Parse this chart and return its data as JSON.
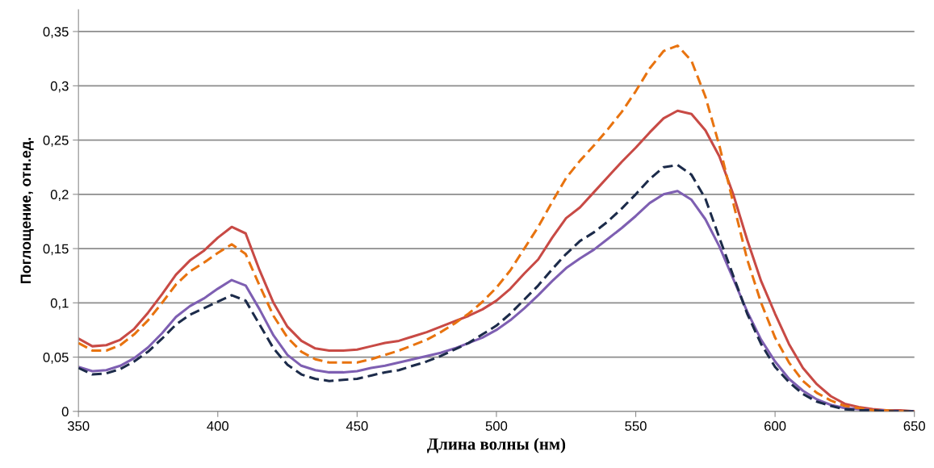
{
  "chart_data": {
    "type": "line",
    "xlabel": "Длина волны (нм)",
    "ylabel": "Поглощение, отн.ед.",
    "x": [
      350,
      355,
      360,
      365,
      370,
      375,
      380,
      385,
      390,
      395,
      400,
      405,
      410,
      415,
      420,
      425,
      430,
      435,
      440,
      445,
      450,
      455,
      460,
      465,
      470,
      475,
      480,
      485,
      490,
      495,
      500,
      505,
      510,
      515,
      520,
      525,
      530,
      535,
      540,
      545,
      550,
      555,
      560,
      565,
      570,
      575,
      580,
      585,
      590,
      595,
      600,
      605,
      610,
      615,
      620,
      625,
      630,
      635,
      640,
      645,
      650
    ],
    "xlim": [
      350,
      650
    ],
    "xticks": [
      350,
      400,
      450,
      500,
      550,
      600,
      650
    ],
    "ylim": [
      0,
      0.37
    ],
    "yticks": [
      {
        "value": 0,
        "label": "0"
      },
      {
        "value": 0.05,
        "label": "0,05"
      },
      {
        "value": 0.1,
        "label": "0,1"
      },
      {
        "value": 0.15,
        "label": "0,15"
      },
      {
        "value": 0.2,
        "label": "0,2"
      },
      {
        "value": 0.25,
        "label": "0,25"
      },
      {
        "value": 0.3,
        "label": "0,3"
      },
      {
        "value": 0.35,
        "label": "0,35"
      }
    ],
    "grid": "y",
    "legend": false,
    "marker": "none",
    "series": [
      {
        "color": "#c84a45",
        "line_style": "solid",
        "values": [
          0.067,
          0.06,
          0.061,
          0.066,
          0.076,
          0.091,
          0.108,
          0.126,
          0.139,
          0.148,
          0.16,
          0.17,
          0.164,
          0.13,
          0.1,
          0.078,
          0.065,
          0.058,
          0.056,
          0.056,
          0.057,
          0.06,
          0.063,
          0.065,
          0.069,
          0.073,
          0.078,
          0.083,
          0.088,
          0.094,
          0.102,
          0.113,
          0.127,
          0.14,
          0.16,
          0.178,
          0.188,
          0.202,
          0.216,
          0.23,
          0.243,
          0.257,
          0.27,
          0.277,
          0.274,
          0.259,
          0.235,
          0.2,
          0.158,
          0.12,
          0.09,
          0.062,
          0.04,
          0.025,
          0.014,
          0.007,
          0.004,
          0.002,
          0.001,
          0.001,
          0.0
        ]
      },
      {
        "color": "#e8730f",
        "line_style": "dashed",
        "values": [
          0.063,
          0.056,
          0.056,
          0.061,
          0.071,
          0.084,
          0.1,
          0.117,
          0.129,
          0.137,
          0.146,
          0.154,
          0.145,
          0.116,
          0.088,
          0.068,
          0.055,
          0.048,
          0.045,
          0.045,
          0.045,
          0.048,
          0.052,
          0.056,
          0.061,
          0.066,
          0.073,
          0.081,
          0.09,
          0.101,
          0.114,
          0.13,
          0.15,
          0.17,
          0.193,
          0.215,
          0.231,
          0.245,
          0.26,
          0.276,
          0.295,
          0.316,
          0.332,
          0.337,
          0.323,
          0.29,
          0.245,
          0.192,
          0.14,
          0.1,
          0.068,
          0.045,
          0.028,
          0.017,
          0.01,
          0.005,
          0.003,
          0.001,
          0.001,
          0.0,
          0.0
        ]
      },
      {
        "color": "#7e5fb2",
        "line_style": "solid",
        "values": [
          0.041,
          0.037,
          0.038,
          0.042,
          0.049,
          0.059,
          0.072,
          0.087,
          0.097,
          0.104,
          0.113,
          0.121,
          0.116,
          0.094,
          0.07,
          0.052,
          0.042,
          0.038,
          0.036,
          0.036,
          0.037,
          0.04,
          0.042,
          0.045,
          0.048,
          0.051,
          0.054,
          0.058,
          0.063,
          0.068,
          0.075,
          0.084,
          0.095,
          0.107,
          0.12,
          0.132,
          0.141,
          0.149,
          0.159,
          0.169,
          0.18,
          0.192,
          0.2,
          0.203,
          0.195,
          0.177,
          0.152,
          0.122,
          0.092,
          0.066,
          0.046,
          0.03,
          0.019,
          0.011,
          0.006,
          0.003,
          0.002,
          0.001,
          0.001,
          0.0,
          0.0
        ]
      },
      {
        "color": "#1c2b4a",
        "line_style": "dashed",
        "values": [
          0.04,
          0.034,
          0.035,
          0.039,
          0.046,
          0.055,
          0.067,
          0.08,
          0.089,
          0.095,
          0.101,
          0.107,
          0.102,
          0.08,
          0.058,
          0.043,
          0.034,
          0.03,
          0.028,
          0.029,
          0.03,
          0.033,
          0.036,
          0.038,
          0.042,
          0.046,
          0.051,
          0.057,
          0.063,
          0.071,
          0.079,
          0.09,
          0.103,
          0.116,
          0.131,
          0.145,
          0.157,
          0.165,
          0.175,
          0.187,
          0.2,
          0.214,
          0.225,
          0.227,
          0.218,
          0.196,
          0.16,
          0.125,
          0.09,
          0.062,
          0.041,
          0.027,
          0.016,
          0.009,
          0.005,
          0.002,
          0.001,
          0.001,
          0.0,
          0.0,
          0.0
        ]
      }
    ]
  }
}
